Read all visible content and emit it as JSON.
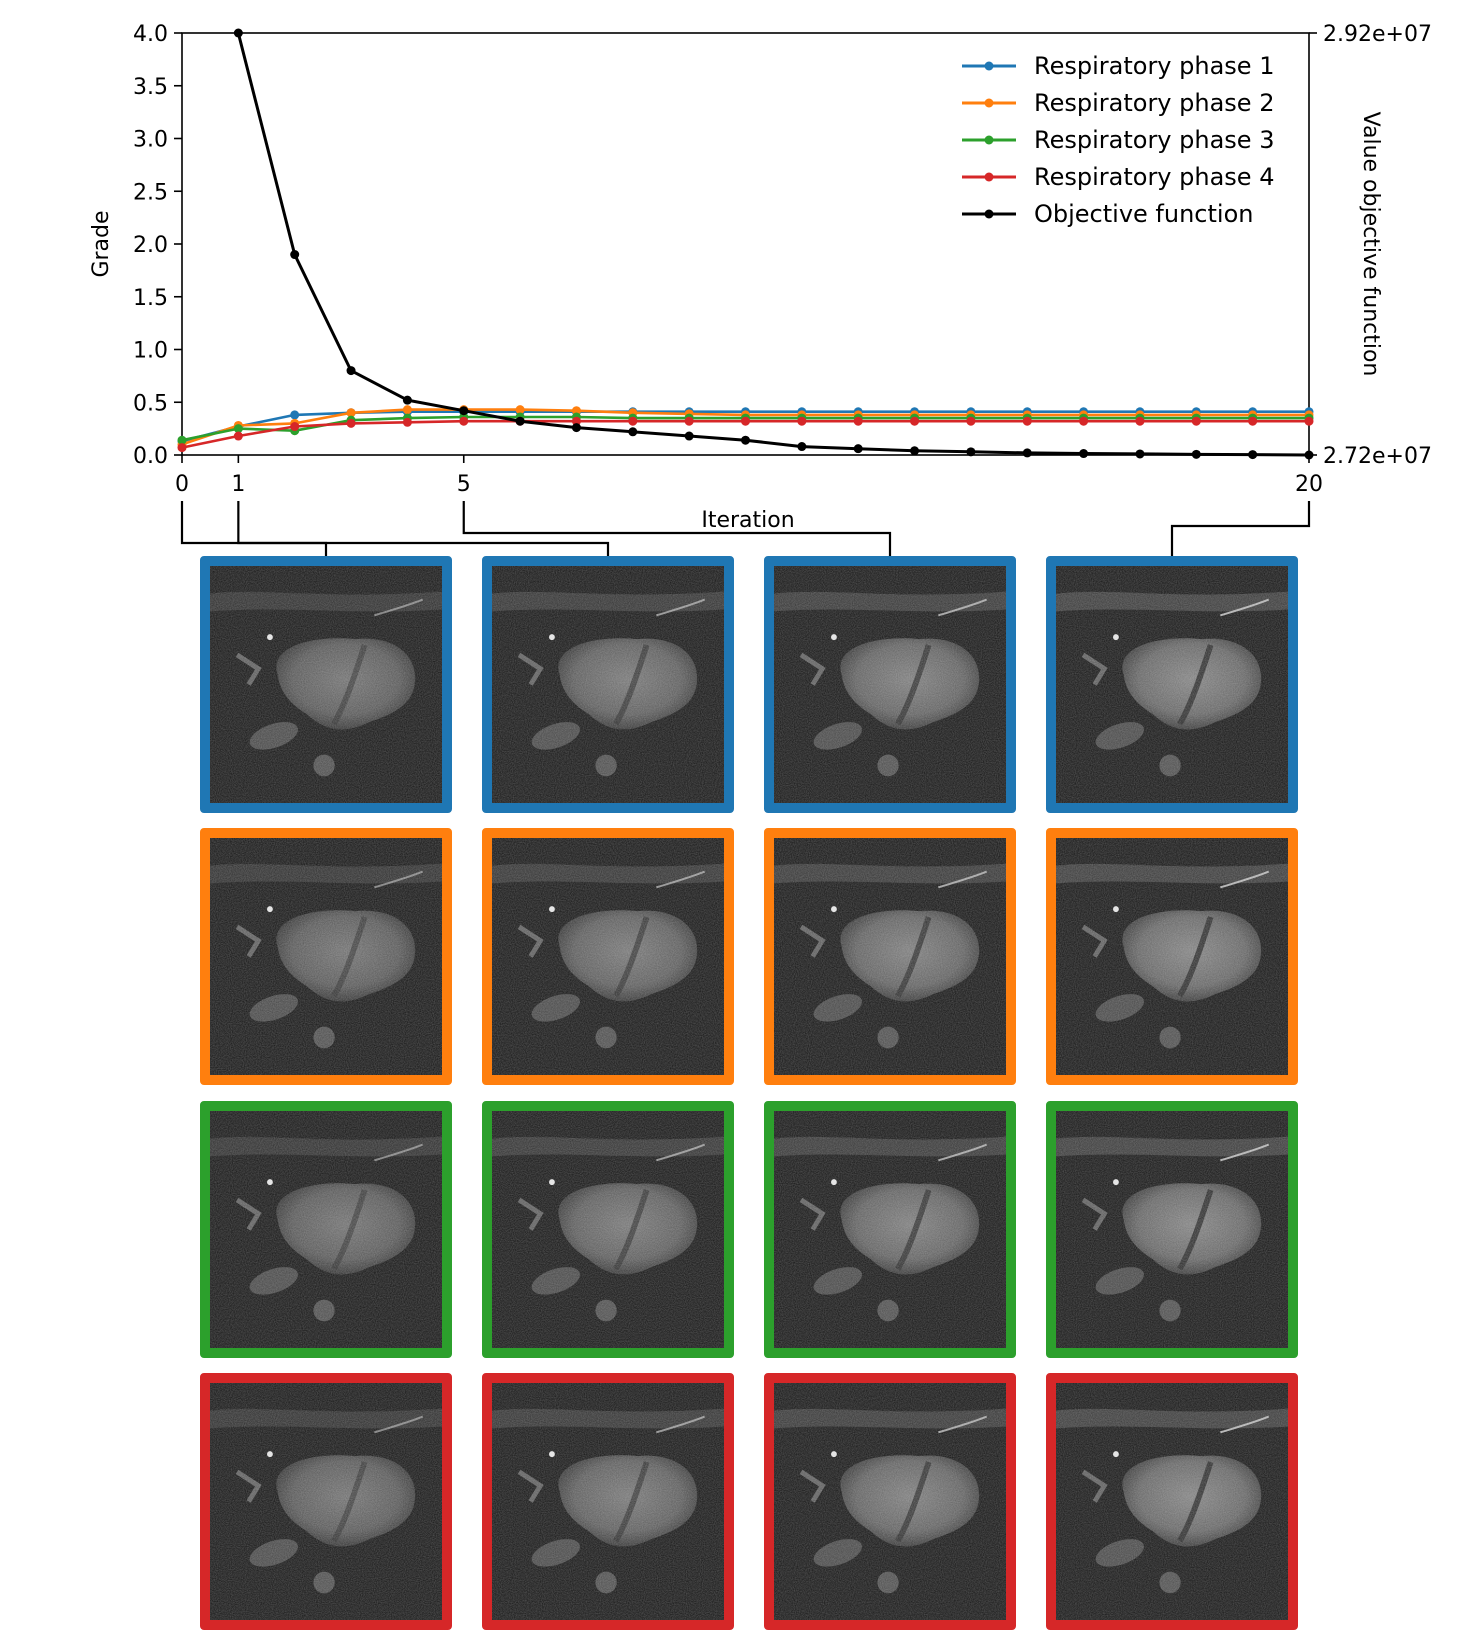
{
  "chart_data": {
    "type": "line",
    "title": "",
    "xlabel": "Iteration",
    "ylabel": "Grade",
    "y2label": "Value objective function",
    "xlim": [
      0,
      20
    ],
    "ylim": [
      0,
      4.0
    ],
    "y2lim": [
      27200000,
      29200000
    ],
    "x_ticks": [
      0,
      1,
      5,
      20
    ],
    "x_tick_labels": [
      "0",
      "1",
      "5",
      "20"
    ],
    "y_ticks": [
      0,
      0.5,
      1.0,
      1.5,
      2.0,
      2.5,
      3.0,
      3.5,
      4.0
    ],
    "y_tick_labels": [
      "0.0",
      "0.5",
      "1.0",
      "1.5",
      "2.0",
      "2.5",
      "3.0",
      "3.5",
      "4.0"
    ],
    "y2_ticks": [
      27200000,
      29200000
    ],
    "y2_tick_labels": [
      "2.72e+07",
      "2.92e+07"
    ],
    "legend_position": "top-right",
    "x": [
      0,
      1,
      2,
      3,
      4,
      5,
      6,
      7,
      8,
      9,
      10,
      11,
      12,
      13,
      14,
      15,
      16,
      17,
      18,
      19,
      20
    ],
    "series": [
      {
        "name": "Respiratory phase 1",
        "axis": "left",
        "color": "#1f77b4",
        "values": [
          0.13,
          0.27,
          0.38,
          0.4,
          0.41,
          0.41,
          0.41,
          0.41,
          0.41,
          0.41,
          0.41,
          0.41,
          0.41,
          0.41,
          0.41,
          0.41,
          0.41,
          0.41,
          0.41,
          0.41,
          0.41
        ]
      },
      {
        "name": "Respiratory phase 2",
        "axis": "left",
        "color": "#ff7f0e",
        "values": [
          0.1,
          0.28,
          0.3,
          0.4,
          0.43,
          0.43,
          0.43,
          0.42,
          0.4,
          0.39,
          0.38,
          0.38,
          0.38,
          0.38,
          0.38,
          0.38,
          0.38,
          0.38,
          0.38,
          0.38,
          0.38
        ]
      },
      {
        "name": "Respiratory phase 3",
        "axis": "left",
        "color": "#2ca02c",
        "values": [
          0.14,
          0.25,
          0.23,
          0.33,
          0.35,
          0.36,
          0.36,
          0.36,
          0.35,
          0.35,
          0.35,
          0.35,
          0.35,
          0.35,
          0.35,
          0.35,
          0.35,
          0.35,
          0.35,
          0.35,
          0.35
        ]
      },
      {
        "name": "Respiratory phase 4",
        "axis": "left",
        "color": "#d62728",
        "values": [
          0.07,
          0.18,
          0.27,
          0.3,
          0.31,
          0.32,
          0.32,
          0.32,
          0.32,
          0.32,
          0.32,
          0.32,
          0.32,
          0.32,
          0.32,
          0.32,
          0.32,
          0.32,
          0.32,
          0.32,
          0.32
        ]
      },
      {
        "name": "Objective function",
        "axis": "right",
        "color": "#000000",
        "values": [
          null,
          29200000,
          28150000,
          27600000,
          27460000,
          27410000,
          27360000,
          27330000,
          27310000,
          27290000,
          27270000,
          27240000,
          27230000,
          27220000,
          27215000,
          27210000,
          27207000,
          27205000,
          27203000,
          27202000,
          27200000
        ]
      }
    ],
    "image_panel": {
      "iterations_shown": [
        0,
        1,
        5,
        20
      ],
      "rows": [
        "Respiratory phase 1",
        "Respiratory phase 2",
        "Respiratory phase 3",
        "Respiratory phase 4"
      ],
      "row_colors": [
        "#1f77b4",
        "#ff7f0e",
        "#2ca02c",
        "#d62728"
      ]
    }
  }
}
